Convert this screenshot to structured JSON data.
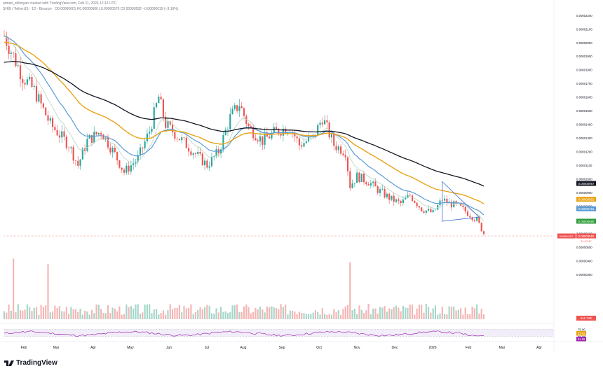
{
  "header": {
    "author_line": "arman_shirinyan created with TradingView.com, Feb 11, 2026 12:12 UTC",
    "symbol_line": "SHIB / TetherUS · 1D · Binance",
    "ohlc_line": "O0.00000601 H0.00000606 L0.00000576 C0.00000582 −0.00000019 (−3.16%)"
  },
  "logo": {
    "text": "TradingView",
    "icon": "tradingview-logo-icon"
  },
  "colors": {
    "up": "#26a69a",
    "down": "#ef5350",
    "ema_fast": "#b7d3c7",
    "ema_mid": "#5b9bd5",
    "ema_slow": "#e8a317",
    "ema_long": "#131722",
    "triangle": "#3f6fd1",
    "rsi": "#9c27b0"
  },
  "chart_data": {
    "type": "candlestick",
    "x_ticks": [
      "Feb",
      "Mar",
      "Apr",
      "May",
      "Jun",
      "Jul",
      "Aug",
      "Sep",
      "Oct",
      "Nov",
      "Dec",
      "2026",
      "Feb",
      "Mar",
      "Apr"
    ],
    "y_ticks": [
      "0.00002200",
      "0.00002100",
      "0.00002000",
      "0.00001900",
      "0.00001800",
      "0.00001700",
      "0.00001600",
      "0.00001500",
      "0.00001400",
      "0.00001300",
      "0.00001200",
      "0.00001100",
      "0.00001000",
      "0.00000900",
      "0.00000800",
      "0.00000700",
      "0.00000600",
      "0.00000500",
      "0.00000400",
      "0.00000300"
    ],
    "ylim": [
      3e-06,
      2.24e-05
    ],
    "price_path": [
      [
        0,
        2.05e-05
      ],
      [
        4,
        1.9e-05
      ],
      [
        8,
        1.75e-05
      ],
      [
        13,
        1.65e-05
      ],
      [
        20,
        1.4e-05
      ],
      [
        28,
        1.25e-05
      ],
      [
        32,
        1.1e-05
      ],
      [
        36,
        1.28e-05
      ],
      [
        42,
        1.35e-05
      ],
      [
        48,
        1.18e-05
      ],
      [
        52,
        1.05e-05
      ],
      [
        58,
        1.15e-05
      ],
      [
        63,
        1.35e-05
      ],
      [
        67,
        1.6e-05
      ],
      [
        70,
        1.4e-05
      ],
      [
        76,
        1.3e-05
      ],
      [
        82,
        1.2e-05
      ],
      [
        88,
        1.1e-05
      ],
      [
        93,
        1.2e-05
      ],
      [
        98,
        1.45e-05
      ],
      [
        102,
        1.55e-05
      ],
      [
        106,
        1.38e-05
      ],
      [
        112,
        1.28e-05
      ],
      [
        118,
        1.35e-05
      ],
      [
        124,
        1.38e-05
      ],
      [
        128,
        1.25e-05
      ],
      [
        134,
        1.3e-05
      ],
      [
        138,
        1.45e-05
      ],
      [
        143,
        1.25e-05
      ],
      [
        148,
        1.2e-05
      ],
      [
        150,
        9.5e-06
      ],
      [
        153,
        1.02e-05
      ],
      [
        158,
        9.8e-06
      ],
      [
        162,
        9.2e-06
      ],
      [
        168,
        8.5e-06
      ],
      [
        172,
        8.2e-06
      ],
      [
        176,
        8.8e-06
      ],
      [
        181,
        7.8e-06
      ],
      [
        186,
        7.5e-06
      ],
      [
        190,
        8.5e-06
      ],
      [
        193,
        8.2e-06
      ],
      [
        197,
        8e-06
      ],
      [
        201,
        7.5e-06
      ],
      [
        205,
        7e-06
      ],
      [
        208,
        6e-06
      ]
    ],
    "price_labels": [
      {
        "text": "0.00000967",
        "value": 9.67e-06,
        "color": "#131722"
      },
      {
        "text": "0.00000851",
        "value": 8.51e-06,
        "color": "#e8a317"
      },
      {
        "text": "0.00000781",
        "value": 7.81e-06,
        "color": "#5b9bd5"
      },
      {
        "text": "0.00000690",
        "value": 6.9e-06,
        "color": "#2e9d3a"
      },
      {
        "text": "0.00000582",
        "value": 5.82e-06,
        "color": "#ef5350"
      }
    ],
    "last_price": {
      "symbol": "SHIBUSDT",
      "price": "0.00000582",
      "countdown": "11:47:47"
    },
    "volume_label": "511.74B",
    "rsi": {
      "ticks": [
        "75.00",
        "25.00"
      ],
      "values": [
        "33.61",
        "31.19"
      ],
      "upper": 75,
      "lower": 25
    }
  }
}
